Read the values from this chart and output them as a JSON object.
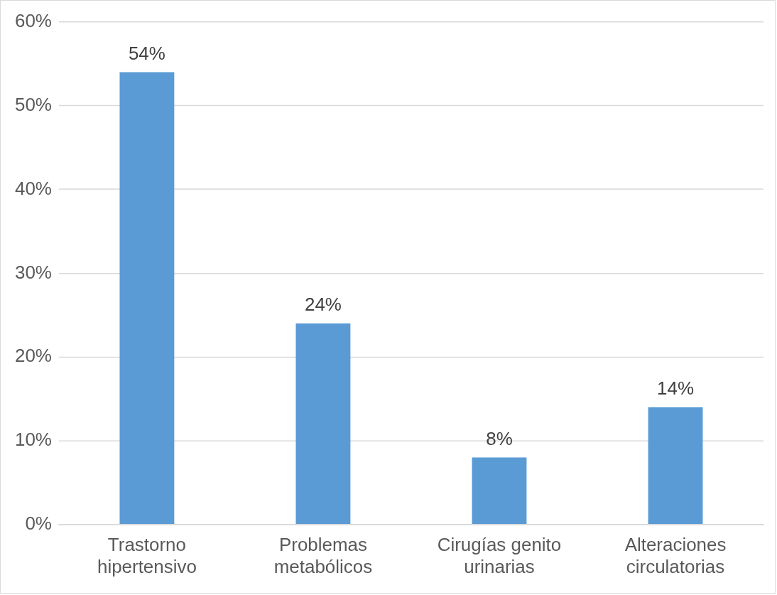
{
  "chart_data": {
    "type": "bar",
    "categories": [
      "Trastorno hipertensivo",
      "Problemas metabólicos",
      "Cirugías genito urinarias",
      "Alteraciones circulatorias"
    ],
    "values": [
      54,
      24,
      8,
      14
    ],
    "color": "#5b9bd5",
    "value_labels": [
      "54%",
      "24%",
      "8%",
      "14%"
    ],
    "ylim": [
      0,
      60
    ],
    "yticks": [
      {
        "value": 0,
        "label": "0%"
      },
      {
        "value": 10,
        "label": "10%"
      },
      {
        "value": 20,
        "label": "20%"
      },
      {
        "value": 30,
        "label": "30%"
      },
      {
        "value": 40,
        "label": "40%"
      },
      {
        "value": 50,
        "label": "50%"
      },
      {
        "value": 60,
        "label": "60%"
      }
    ],
    "grid": "y",
    "legend": false
  }
}
